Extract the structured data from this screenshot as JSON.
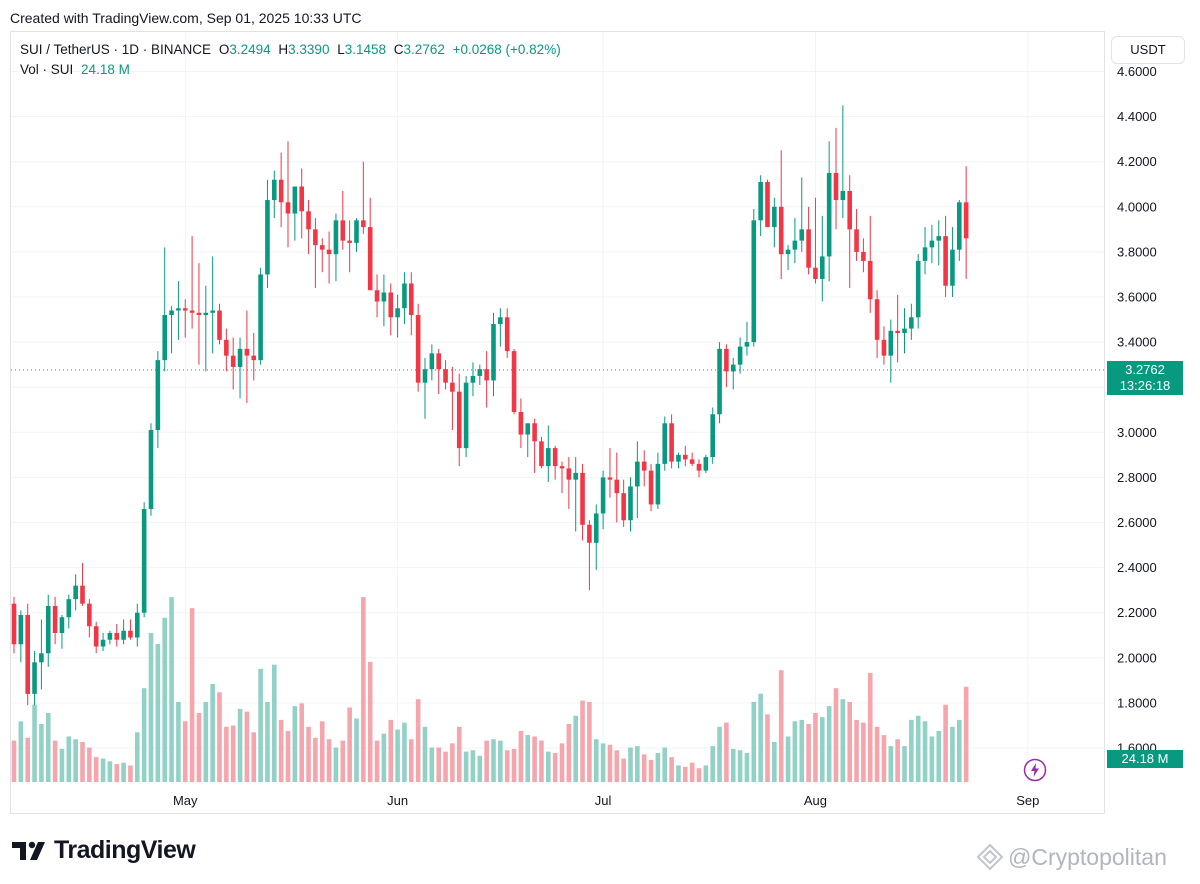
{
  "header": {
    "created_text": "Created with TradingView.com, Sep 01, 2025 10:33 UTC"
  },
  "legend": {
    "symbol": "SUI / TetherUS · 1D · BINANCE",
    "open_label": "O",
    "open_value": "3.2494",
    "high_label": "H",
    "high_value": "3.3390",
    "low_label": "L",
    "low_value": "3.1458",
    "close_label": "C",
    "close_value": "3.2762",
    "change": "+0.0268 (+0.82%)",
    "vol_label": "Vol · SUI",
    "vol_value": "24.18 M"
  },
  "currency_button": "USDT",
  "price_badge": {
    "price": "3.2762",
    "countdown": "13:26:18"
  },
  "volume_badge": "24.18 M",
  "branding": {
    "logo_text": "TradingView",
    "watermark": "@Cryptopolitan"
  },
  "colors": {
    "up": "#089981",
    "down": "#f23645",
    "up_vol": "#92d1c6",
    "down_vol": "#f5a6ad",
    "grid": "#f0f3fa"
  },
  "chart_data": {
    "type": "candlestick",
    "yticks": [
      "4.6000",
      "4.4000",
      "4.2000",
      "4.0000",
      "3.8000",
      "3.6000",
      "3.4000",
      "3.2000",
      "3.0000",
      "2.8000",
      "2.6000",
      "2.4000",
      "2.2000",
      "2.0000",
      "1.8000",
      "1.6000"
    ],
    "xticks": [
      {
        "label": "May",
        "index": 25
      },
      {
        "label": "Jun",
        "index": 56
      },
      {
        "label": "Jul",
        "index": 86
      },
      {
        "label": "Aug",
        "index": 117
      },
      {
        "label": "Sep",
        "index": 148
      }
    ],
    "last_price": 3.2762,
    "candles": [
      [
        2.24,
        2.27,
        2.02,
        2.06,
        30
      ],
      [
        2.06,
        2.21,
        1.98,
        2.19,
        44
      ],
      [
        2.19,
        2.24,
        1.79,
        1.84,
        32
      ],
      [
        1.84,
        2.03,
        1.79,
        1.98,
        56
      ],
      [
        1.98,
        2.17,
        1.86,
        2.02,
        42
      ],
      [
        2.02,
        2.28,
        1.96,
        2.23,
        50
      ],
      [
        2.23,
        2.27,
        2.06,
        2.11,
        30
      ],
      [
        2.11,
        2.19,
        2.04,
        2.18,
        24
      ],
      [
        2.18,
        2.28,
        2.13,
        2.26,
        33
      ],
      [
        2.26,
        2.37,
        2.21,
        2.32,
        31
      ],
      [
        2.32,
        2.42,
        2.23,
        2.24,
        29
      ],
      [
        2.24,
        2.26,
        2.09,
        2.14,
        25
      ],
      [
        2.14,
        2.16,
        2.02,
        2.05,
        18
      ],
      [
        2.05,
        2.11,
        2.03,
        2.08,
        17
      ],
      [
        2.08,
        2.12,
        2.06,
        2.11,
        15
      ],
      [
        2.11,
        2.15,
        2.05,
        2.08,
        13
      ],
      [
        2.08,
        2.17,
        2.06,
        2.12,
        14
      ],
      [
        2.12,
        2.17,
        2.08,
        2.09,
        12
      ],
      [
        2.09,
        2.24,
        2.05,
        2.2,
        36
      ],
      [
        2.2,
        2.69,
        2.18,
        2.66,
        68
      ],
      [
        2.66,
        3.04,
        2.63,
        3.01,
        108
      ],
      [
        3.01,
        3.36,
        2.93,
        3.32,
        100
      ],
      [
        3.32,
        3.82,
        3.27,
        3.52,
        119
      ],
      [
        3.52,
        3.56,
        3.35,
        3.54,
        134
      ],
      [
        3.54,
        3.67,
        3.41,
        3.55,
        58
      ],
      [
        3.55,
        3.59,
        3.42,
        3.54,
        44
      ],
      [
        3.54,
        3.87,
        3.46,
        3.53,
        126
      ],
      [
        3.53,
        3.75,
        3.3,
        3.52,
        50
      ],
      [
        3.52,
        3.65,
        3.27,
        3.53,
        58
      ],
      [
        3.53,
        3.78,
        3.35,
        3.54,
        71
      ],
      [
        3.54,
        3.57,
        3.39,
        3.41,
        65
      ],
      [
        3.41,
        3.46,
        3.27,
        3.34,
        40
      ],
      [
        3.34,
        3.42,
        3.19,
        3.29,
        41
      ],
      [
        3.29,
        3.42,
        3.15,
        3.37,
        53
      ],
      [
        3.37,
        3.54,
        3.13,
        3.34,
        51
      ],
      [
        3.34,
        3.44,
        3.23,
        3.32,
        36
      ],
      [
        3.32,
        3.73,
        3.3,
        3.7,
        82
      ],
      [
        3.7,
        4.12,
        3.64,
        4.03,
        58
      ],
      [
        4.03,
        4.16,
        3.95,
        4.12,
        85
      ],
      [
        4.12,
        4.24,
        3.91,
        4.02,
        45
      ],
      [
        4.02,
        4.29,
        3.82,
        3.97,
        37
      ],
      [
        3.97,
        4.07,
        3.85,
        4.09,
        55
      ],
      [
        4.09,
        4.17,
        3.86,
        3.98,
        57
      ],
      [
        3.98,
        4.03,
        3.79,
        3.9,
        40
      ],
      [
        3.9,
        3.95,
        3.64,
        3.83,
        32
      ],
      [
        3.83,
        3.86,
        3.71,
        3.81,
        44
      ],
      [
        3.81,
        3.89,
        3.66,
        3.79,
        31
      ],
      [
        3.79,
        3.97,
        3.67,
        3.94,
        25
      ],
      [
        3.94,
        4.07,
        3.81,
        3.85,
        30
      ],
      [
        3.85,
        3.94,
        3.71,
        3.84,
        54
      ],
      [
        3.84,
        3.95,
        3.8,
        3.94,
        46
      ],
      [
        3.94,
        4.2,
        3.88,
        3.91,
        134
      ],
      [
        3.91,
        4.04,
        3.65,
        3.63,
        87
      ],
      [
        3.63,
        3.7,
        3.51,
        3.58,
        30
      ],
      [
        3.58,
        3.7,
        3.47,
        3.62,
        35
      ],
      [
        3.62,
        3.66,
        3.43,
        3.51,
        45
      ],
      [
        3.51,
        3.61,
        3.42,
        3.55,
        38
      ],
      [
        3.55,
        3.71,
        3.48,
        3.66,
        43
      ],
      [
        3.66,
        3.71,
        3.43,
        3.52,
        31
      ],
      [
        3.52,
        3.57,
        3.18,
        3.22,
        60
      ],
      [
        3.22,
        3.33,
        3.06,
        3.28,
        40
      ],
      [
        3.28,
        3.39,
        3.23,
        3.35,
        25
      ],
      [
        3.35,
        3.37,
        3.17,
        3.28,
        25
      ],
      [
        3.28,
        3.32,
        3.19,
        3.22,
        22
      ],
      [
        3.22,
        3.29,
        3.01,
        3.18,
        28
      ],
      [
        3.18,
        3.26,
        2.85,
        2.93,
        40
      ],
      [
        2.93,
        3.25,
        2.89,
        3.22,
        22
      ],
      [
        3.22,
        3.31,
        3.16,
        3.25,
        23
      ],
      [
        3.25,
        3.3,
        3.21,
        3.28,
        19
      ],
      [
        3.28,
        3.36,
        3.11,
        3.23,
        30
      ],
      [
        3.23,
        3.53,
        3.16,
        3.48,
        31
      ],
      [
        3.48,
        3.55,
        3.38,
        3.51,
        30
      ],
      [
        3.51,
        3.55,
        3.33,
        3.36,
        23
      ],
      [
        3.36,
        3.37,
        3.08,
        3.09,
        24
      ],
      [
        3.09,
        3.15,
        2.93,
        2.99,
        37
      ],
      [
        2.99,
        3.03,
        2.89,
        3.04,
        34
      ],
      [
        3.04,
        3.06,
        2.82,
        2.96,
        33
      ],
      [
        2.96,
        2.98,
        2.84,
        2.85,
        30
      ],
      [
        2.85,
        3.03,
        2.78,
        2.93,
        22
      ],
      [
        2.93,
        2.94,
        2.79,
        2.85,
        21
      ],
      [
        2.85,
        2.87,
        2.73,
        2.84,
        28
      ],
      [
        2.84,
        2.89,
        2.66,
        2.79,
        42
      ],
      [
        2.79,
        2.89,
        2.56,
        2.82,
        48
      ],
      [
        2.82,
        2.86,
        2.52,
        2.59,
        59
      ],
      [
        2.59,
        2.61,
        2.3,
        2.51,
        58
      ],
      [
        2.51,
        2.68,
        2.39,
        2.64,
        31
      ],
      [
        2.64,
        2.83,
        2.57,
        2.8,
        28
      ],
      [
        2.8,
        2.93,
        2.71,
        2.79,
        27
      ],
      [
        2.79,
        2.91,
        2.6,
        2.73,
        23
      ],
      [
        2.73,
        2.79,
        2.58,
        2.61,
        17
      ],
      [
        2.61,
        2.8,
        2.56,
        2.76,
        25
      ],
      [
        2.76,
        2.96,
        2.62,
        2.87,
        26
      ],
      [
        2.87,
        2.92,
        2.76,
        2.83,
        20
      ],
      [
        2.83,
        2.86,
        2.65,
        2.68,
        16
      ],
      [
        2.68,
        2.91,
        2.66,
        2.86,
        21
      ],
      [
        2.86,
        3.07,
        2.83,
        3.04,
        25
      ],
      [
        3.04,
        3.08,
        2.84,
        2.87,
        18
      ],
      [
        2.87,
        2.91,
        2.84,
        2.9,
        12
      ],
      [
        2.9,
        2.94,
        2.85,
        2.88,
        11
      ],
      [
        2.88,
        2.91,
        2.85,
        2.86,
        14
      ],
      [
        2.86,
        2.88,
        2.8,
        2.83,
        10
      ],
      [
        2.83,
        2.9,
        2.82,
        2.89,
        12
      ],
      [
        2.89,
        3.11,
        2.86,
        3.08,
        26
      ],
      [
        3.08,
        3.4,
        3.04,
        3.37,
        40
      ],
      [
        3.37,
        3.39,
        3.2,
        3.27,
        43
      ],
      [
        3.27,
        3.33,
        3.19,
        3.3,
        24
      ],
      [
        3.3,
        3.42,
        3.26,
        3.38,
        23
      ],
      [
        3.38,
        3.49,
        3.34,
        3.4,
        21
      ],
      [
        3.4,
        3.99,
        3.38,
        3.94,
        58
      ],
      [
        3.94,
        4.14,
        3.87,
        4.11,
        64
      ],
      [
        4.11,
        4.12,
        3.91,
        3.91,
        49
      ],
      [
        3.91,
        4.04,
        3.82,
        4.0,
        29
      ],
      [
        4.0,
        4.25,
        3.68,
        3.79,
        81
      ],
      [
        3.79,
        3.83,
        3.72,
        3.81,
        33
      ],
      [
        3.81,
        3.95,
        3.75,
        3.85,
        44
      ],
      [
        3.85,
        4.13,
        3.8,
        3.9,
        45
      ],
      [
        3.9,
        4.0,
        3.7,
        3.73,
        42
      ],
      [
        3.73,
        4.04,
        3.66,
        3.68,
        50
      ],
      [
        3.68,
        3.96,
        3.58,
        3.78,
        47
      ],
      [
        3.78,
        4.29,
        3.67,
        4.15,
        55
      ],
      [
        4.15,
        4.35,
        3.9,
        4.03,
        68
      ],
      [
        4.03,
        4.45,
        3.95,
        4.07,
        60
      ],
      [
        4.07,
        4.14,
        3.64,
        3.9,
        58
      ],
      [
        3.9,
        3.99,
        3.76,
        3.8,
        45
      ],
      [
        3.8,
        3.86,
        3.71,
        3.76,
        43
      ],
      [
        3.76,
        3.96,
        3.53,
        3.59,
        79
      ],
      [
        3.59,
        3.63,
        3.33,
        3.41,
        40
      ],
      [
        3.41,
        3.47,
        3.3,
        3.34,
        34
      ],
      [
        3.34,
        3.5,
        3.22,
        3.45,
        26
      ],
      [
        3.45,
        3.61,
        3.31,
        3.44,
        31
      ],
      [
        3.44,
        3.55,
        3.35,
        3.46,
        26
      ],
      [
        3.46,
        3.57,
        3.41,
        3.51,
        45
      ],
      [
        3.51,
        3.79,
        3.46,
        3.76,
        48
      ],
      [
        3.76,
        3.91,
        3.7,
        3.82,
        44
      ],
      [
        3.82,
        3.92,
        3.75,
        3.85,
        33
      ],
      [
        3.85,
        3.94,
        3.74,
        3.87,
        37
      ],
      [
        3.87,
        3.96,
        3.6,
        3.65,
        56
      ],
      [
        3.65,
        3.91,
        3.6,
        3.81,
        40
      ],
      [
        3.81,
        4.03,
        3.76,
        4.02,
        45
      ],
      [
        4.02,
        4.18,
        3.68,
        3.86,
        69
      ]
    ]
  }
}
